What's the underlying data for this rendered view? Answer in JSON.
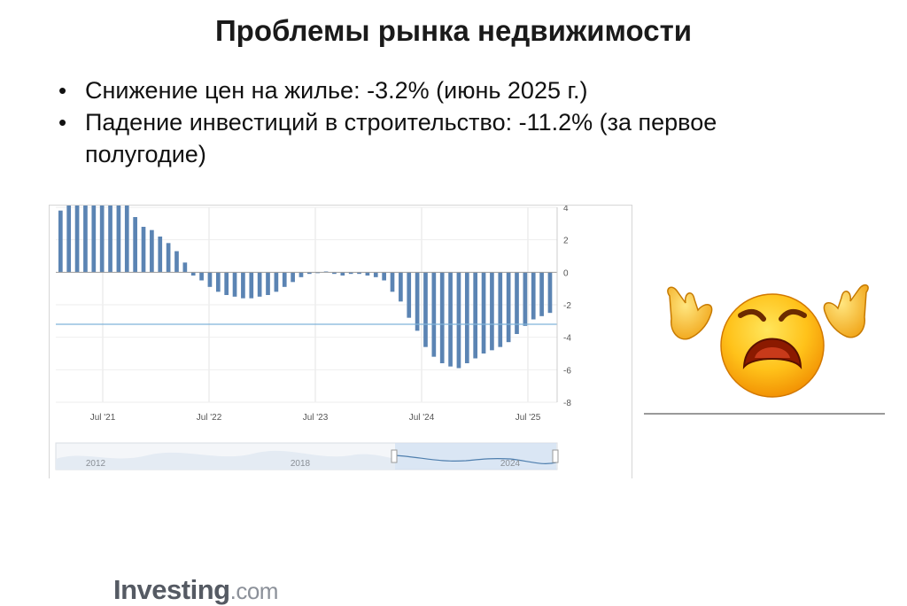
{
  "slide": {
    "title": "Проблемы рынка недвижимости",
    "bullets": [
      "Снижение цен на жилье: -3.2% (июнь 2025 г.)",
      "Падение инвестиций в строительство: -11.2% (за первое полугодие)"
    ]
  },
  "watermark": {
    "brand": "Investing",
    "suffix": ".com"
  },
  "chart_data": {
    "type": "bar",
    "ylim": [
      -8,
      4
    ],
    "yticks": [
      4,
      2,
      0,
      -2,
      -4,
      -6,
      -8
    ],
    "x_tick_labels": [
      "Jul '21",
      "Jul '22",
      "Jul '23",
      "Jul '24",
      "Jul '25"
    ],
    "reference_line": -3.2,
    "series": [
      {
        "color": "#5b84b3",
        "values": [
          3.8,
          4.2,
          4.2,
          4.2,
          4.2,
          4.2,
          4.2,
          4.2,
          4.2,
          3.4,
          2.8,
          2.6,
          2.2,
          1.8,
          1.3,
          0.6,
          -0.2,
          -0.5,
          -0.9,
          -1.2,
          -1.4,
          -1.5,
          -1.6,
          -1.6,
          -1.5,
          -1.4,
          -1.2,
          -0.9,
          -0.6,
          -0.3,
          -0.1,
          0.0,
          0.05,
          -0.1,
          -0.2,
          -0.1,
          -0.1,
          -0.2,
          -0.3,
          -0.5,
          -1.2,
          -1.8,
          -2.8,
          -3.6,
          -4.6,
          -5.2,
          -5.6,
          -5.8,
          -5.9,
          -5.6,
          -5.3,
          -5.0,
          -4.8,
          -4.6,
          -4.3,
          -3.8,
          -3.3,
          -2.9,
          -2.7,
          -2.5
        ]
      }
    ],
    "navigator": {
      "labels": [
        "2012",
        "2018",
        "2024"
      ]
    }
  }
}
